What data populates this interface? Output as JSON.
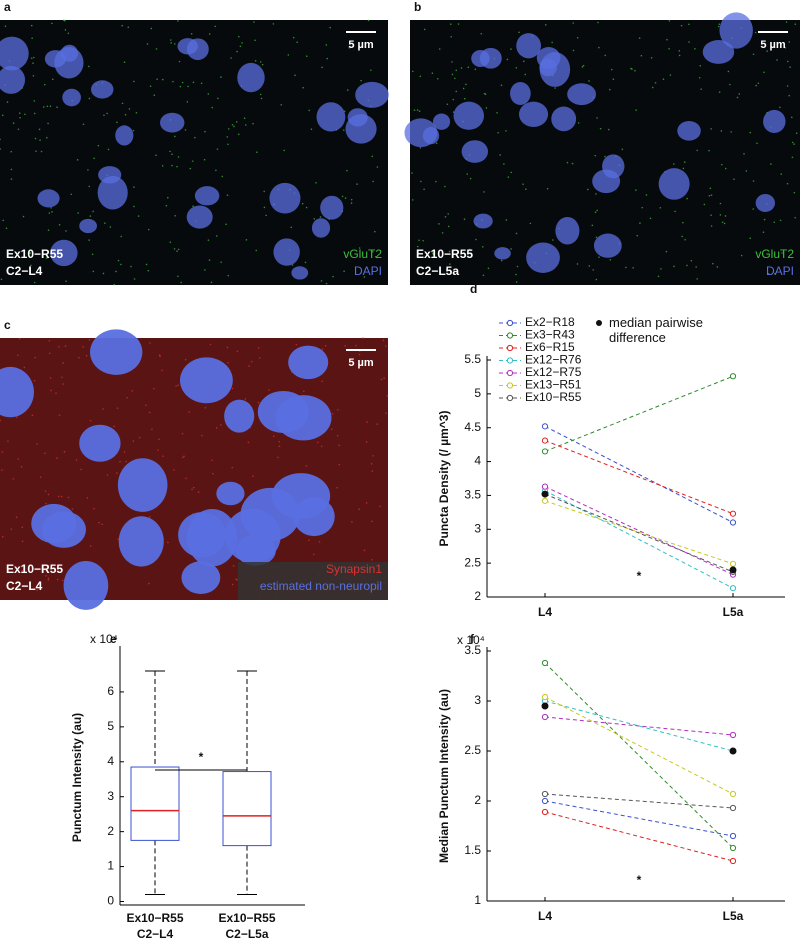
{
  "panels": [
    {
      "letter": "a",
      "scale_bar": "5 µm",
      "sample": "Ex10−R55",
      "region": "C2−L4",
      "background": "#070a0c",
      "channels": [
        {
          "name": "vGluT2",
          "color": "#3fbf3f"
        },
        {
          "name": "DAPI",
          "color": "#5a6fe0"
        }
      ]
    },
    {
      "letter": "b",
      "scale_bar": "5 µm",
      "sample": "Ex10−R55",
      "region": "C2−L5a",
      "background": "#070a0c",
      "channels": [
        {
          "name": "vGluT2",
          "color": "#3fbf3f"
        },
        {
          "name": "DAPI",
          "color": "#5a6fe0"
        }
      ]
    },
    {
      "letter": "c",
      "scale_bar": "5 µm",
      "sample": "Ex10−R55",
      "region": "C2−L4",
      "background": "#5a1414",
      "channels": [
        {
          "name": "Synapsin1",
          "color": "#e03030"
        },
        {
          "name": "estimated non-neuropil",
          "color": "#5a6fe0"
        }
      ]
    }
  ],
  "chart_data": [
    {
      "type": "line",
      "letter": "d",
      "ylabel": "Puncta Density (/ µm^3)",
      "categories": [
        "L4",
        "L5a"
      ],
      "ylim": [
        2,
        5.5
      ],
      "yticks": [
        2,
        2.5,
        3,
        3.5,
        4,
        4.5,
        5,
        5.5
      ],
      "annotation": "*",
      "legend_position": "upper left",
      "series": [
        {
          "name": "Ex2−R18",
          "color": "#3a50d0",
          "values": [
            4.52,
            3.1
          ]
        },
        {
          "name": "Ex3−R43",
          "color": "#2e8b2e",
          "values": [
            4.15,
            5.26
          ]
        },
        {
          "name": "Ex6−R15",
          "color": "#e02020",
          "values": [
            4.31,
            3.23
          ]
        },
        {
          "name": "Ex12−R76",
          "color": "#30c0c8",
          "values": [
            3.57,
            2.13
          ]
        },
        {
          "name": "Ex12−R75",
          "color": "#b030c0",
          "values": [
            3.63,
            2.33
          ]
        },
        {
          "name": "Ex13−R51",
          "color": "#c8c820",
          "values": [
            3.42,
            2.49
          ]
        },
        {
          "name": "Ex10−R55",
          "color": "#555555",
          "values": [
            3.52,
            2.37
          ]
        },
        {
          "name": "median pairwise difference",
          "color": "#111111",
          "linestyle": "none",
          "values": [
            3.52,
            2.4
          ]
        }
      ]
    },
    {
      "type": "box",
      "letter": "e",
      "ylabel": "Punctum Intensity (au)",
      "multiplier": "x 10⁴",
      "categories": [
        [
          "Ex10−R55",
          "C2−L4"
        ],
        [
          "Ex10−R55",
          "C2−L5a"
        ]
      ],
      "ylim": [
        -0.1,
        7.2
      ],
      "yticks": [
        0,
        1,
        2,
        3,
        4,
        5,
        6
      ],
      "annotation": "*",
      "box_color": "#3a50d0",
      "median_color": "#e02020",
      "boxes": [
        {
          "whisker_low": 0.2,
          "q1": 1.75,
          "median": 2.6,
          "q3": 3.85,
          "whisker_high": 6.6
        },
        {
          "whisker_low": 0.2,
          "q1": 1.6,
          "median": 2.45,
          "q3": 3.72,
          "whisker_high": 6.6
        }
      ]
    },
    {
      "type": "line",
      "letter": "f",
      "ylabel": "Median Punctum Intensity (au)",
      "multiplier": "x 10⁴",
      "categories": [
        "L4",
        "L5a"
      ],
      "ylim": [
        1,
        3.5
      ],
      "yticks": [
        1,
        1.5,
        2,
        2.5,
        3,
        3.5
      ],
      "annotation": "*",
      "series": [
        {
          "color": "#3a50d0",
          "values": [
            2.0,
            1.65
          ]
        },
        {
          "color": "#2e8b2e",
          "values": [
            3.38,
            1.53
          ]
        },
        {
          "color": "#e02020",
          "values": [
            1.89,
            1.4
          ]
        },
        {
          "color": "#30c0c8",
          "values": [
            3.0,
            2.5
          ]
        },
        {
          "color": "#b030c0",
          "values": [
            2.84,
            2.66
          ]
        },
        {
          "color": "#c8c820",
          "values": [
            3.04,
            2.07
          ]
        },
        {
          "color": "#555555",
          "values": [
            2.07,
            1.93
          ]
        },
        {
          "color": "#111111",
          "linestyle": "none",
          "values": [
            2.95,
            2.5
          ]
        }
      ]
    }
  ]
}
